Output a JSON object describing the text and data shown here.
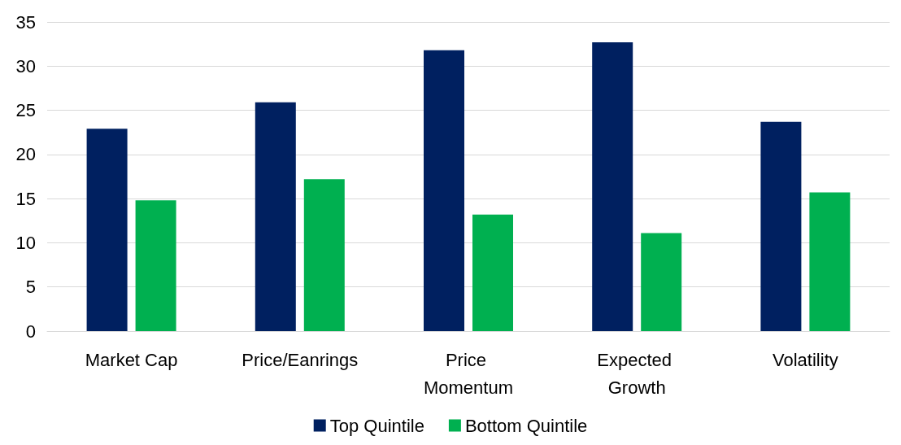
{
  "chart_data": {
    "type": "bar",
    "categories": [
      "Market Cap",
      "Price/Eanrings",
      "Price Momentum",
      "Expected Growth",
      "Volatility"
    ],
    "series": [
      {
        "name": "Top Quintile",
        "color": "#002060",
        "values": [
          22.9,
          25.9,
          31.8,
          32.7,
          23.7
        ]
      },
      {
        "name": "Bottom Quintile",
        "color": "#00b050",
        "values": [
          14.8,
          17.2,
          13.2,
          11.1,
          15.7
        ]
      }
    ],
    "ylim": [
      0,
      35
    ],
    "yticks": [
      0,
      5,
      10,
      15,
      20,
      25,
      30,
      35
    ],
    "grid": "y",
    "legend": "bottom"
  }
}
